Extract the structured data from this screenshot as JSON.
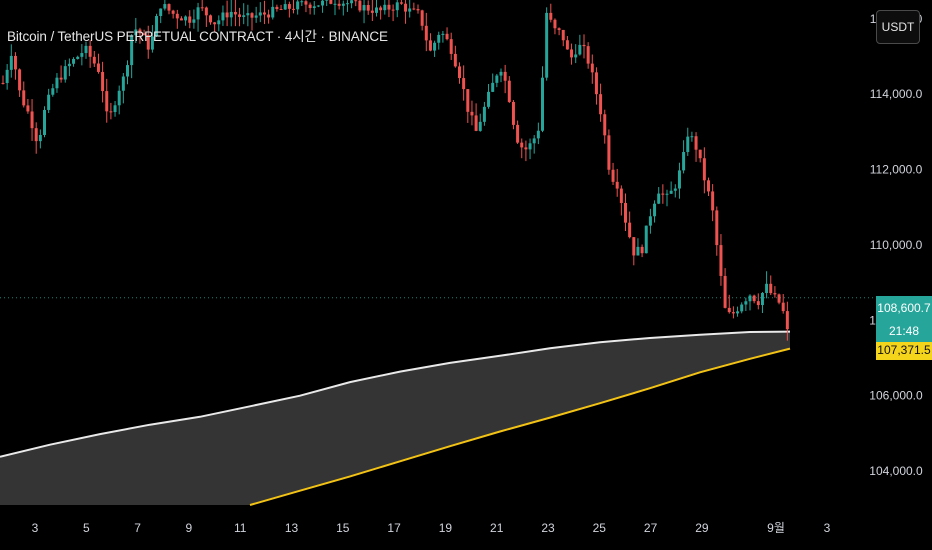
{
  "title": "Bitcoin / TetherUS PERPETUAL CONTRACT · 4시간 · BINANCE",
  "currency_button": "USDT",
  "price_labels": {
    "current": "108,600.7",
    "countdown": "21:48",
    "ma": "107,371.5"
  },
  "colors": {
    "up": "#26a69a",
    "down": "#ef5350",
    "ma_fast": "#e9e9e9",
    "ma_slow": "#f2c316",
    "fill": "#3a3a3a"
  },
  "chart_data": {
    "type": "candlestick",
    "x_ticks": [
      "3",
      "5",
      "7",
      "9",
      "11",
      "13",
      "15",
      "17",
      "19",
      "21",
      "23",
      "25",
      "27",
      "29",
      "9월",
      "3"
    ],
    "y_ticks": [
      "104,000.0",
      "106,000.0",
      "108,000.0",
      "110,000.0",
      "112,000.0",
      "114,000.0",
      "116,000.0"
    ],
    "ylim": [
      103100,
      116500
    ],
    "current_price": 108600.7,
    "ma_fast": [
      [
        0,
        104380
      ],
      [
        50,
        104700
      ],
      [
        100,
        104980
      ],
      [
        150,
        105230
      ],
      [
        200,
        105440
      ],
      [
        250,
        105720
      ],
      [
        300,
        106000
      ],
      [
        350,
        106360
      ],
      [
        400,
        106640
      ],
      [
        450,
        106870
      ],
      [
        500,
        107060
      ],
      [
        550,
        107260
      ],
      [
        600,
        107420
      ],
      [
        650,
        107530
      ],
      [
        700,
        107620
      ],
      [
        750,
        107690
      ],
      [
        790,
        107700
      ]
    ],
    "ma_slow": [
      [
        250,
        103100
      ],
      [
        300,
        103480
      ],
      [
        350,
        103860
      ],
      [
        400,
        104260
      ],
      [
        450,
        104660
      ],
      [
        500,
        105050
      ],
      [
        550,
        105420
      ],
      [
        600,
        105800
      ],
      [
        650,
        106200
      ],
      [
        700,
        106620
      ],
      [
        750,
        106980
      ],
      [
        790,
        107250
      ]
    ],
    "price_path": [
      [
        3,
        114300
      ],
      [
        12,
        115200
      ],
      [
        20,
        114000
      ],
      [
        30,
        113400
      ],
      [
        38,
        112700
      ],
      [
        45,
        113600
      ],
      [
        55,
        114300
      ],
      [
        70,
        114800
      ],
      [
        85,
        115200
      ],
      [
        100,
        114600
      ],
      [
        108,
        113200
      ],
      [
        118,
        114100
      ],
      [
        125,
        114500
      ],
      [
        133,
        115800
      ],
      [
        141,
        115600
      ],
      [
        150,
        115200
      ],
      [
        160,
        116400
      ],
      [
        175,
        116100
      ],
      [
        190,
        116000
      ],
      [
        200,
        116300
      ],
      [
        215,
        115900
      ],
      [
        230,
        116200
      ],
      [
        245,
        116000
      ],
      [
        260,
        116100
      ],
      [
        275,
        116200
      ],
      [
        290,
        116300
      ],
      [
        305,
        116400
      ],
      [
        320,
        116400
      ],
      [
        335,
        116500
      ],
      [
        350,
        116400
      ],
      [
        365,
        116300
      ],
      [
        380,
        116200
      ],
      [
        390,
        116300
      ],
      [
        400,
        116400
      ],
      [
        410,
        116200
      ],
      [
        420,
        116100
      ],
      [
        430,
        115100
      ],
      [
        440,
        115700
      ],
      [
        450,
        115300
      ],
      [
        460,
        114500
      ],
      [
        468,
        113600
      ],
      [
        476,
        113000
      ],
      [
        484,
        113600
      ],
      [
        492,
        114200
      ],
      [
        500,
        114800
      ],
      [
        508,
        114100
      ],
      [
        516,
        112900
      ],
      [
        524,
        112500
      ],
      [
        532,
        112700
      ],
      [
        540,
        113200
      ],
      [
        546,
        116200
      ],
      [
        554,
        115700
      ],
      [
        562,
        115600
      ],
      [
        570,
        114900
      ],
      [
        578,
        115300
      ],
      [
        586,
        115100
      ],
      [
        594,
        114300
      ],
      [
        602,
        113400
      ],
      [
        610,
        111900
      ],
      [
        618,
        111600
      ],
      [
        626,
        110600
      ],
      [
        634,
        109800
      ],
      [
        642,
        109900
      ],
      [
        650,
        110800
      ],
      [
        658,
        111500
      ],
      [
        666,
        111200
      ],
      [
        674,
        111500
      ],
      [
        682,
        112100
      ],
      [
        688,
        113000
      ],
      [
        696,
        112600
      ],
      [
        704,
        111800
      ],
      [
        712,
        111000
      ],
      [
        720,
        109300
      ],
      [
        726,
        108100
      ],
      [
        734,
        108200
      ],
      [
        742,
        108500
      ],
      [
        750,
        108700
      ],
      [
        758,
        108500
      ],
      [
        766,
        108900
      ],
      [
        774,
        108600
      ],
      [
        782,
        108400
      ],
      [
        787,
        107600
      ],
      [
        791,
        108600
      ]
    ]
  }
}
